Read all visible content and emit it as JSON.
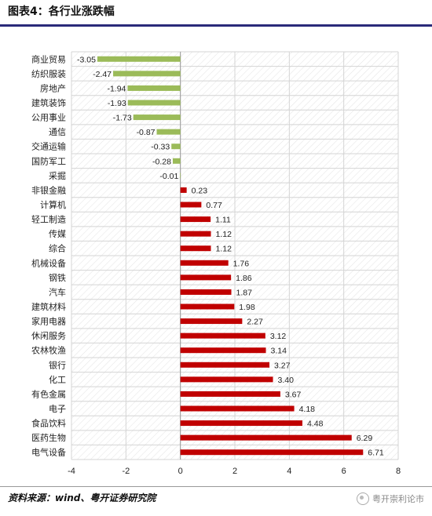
{
  "title": "图表4：各行业涨跌幅",
  "source": "资料来源：wind、粤开证券研究院",
  "watermark": "粤开崇利论市",
  "colors": {
    "negative": "#9bbb59",
    "positive": "#c00000",
    "grid": "#d4d4d4"
  },
  "chart_data": {
    "type": "bar",
    "orientation": "horizontal",
    "categories": [
      "商业贸易",
      "纺织服装",
      "房地产",
      "建筑装饰",
      "公用事业",
      "通信",
      "交通运输",
      "国防军工",
      "采掘",
      "非银金融",
      "计算机",
      "轻工制造",
      "传媒",
      "综合",
      "机械设备",
      "钢铁",
      "汽车",
      "建筑材料",
      "家用电器",
      "休闲服务",
      "农林牧渔",
      "银行",
      "化工",
      "有色金属",
      "电子",
      "食品饮料",
      "医药生物",
      "电气设备"
    ],
    "values": [
      -3.05,
      -2.47,
      -1.94,
      -1.93,
      -1.73,
      -0.87,
      -0.33,
      -0.28,
      -0.01,
      0.23,
      0.77,
      1.11,
      1.12,
      1.12,
      1.76,
      1.86,
      1.87,
      1.98,
      2.27,
      3.12,
      3.14,
      3.27,
      3.4,
      3.67,
      4.18,
      4.48,
      6.29,
      6.71
    ],
    "value_labels": [
      "-3.05",
      "-2.47",
      "-1.94",
      "-1.93",
      "-1.73",
      "-0.87",
      "-0.33",
      "-0.28",
      "-0.01",
      "0.23",
      "0.77",
      "1.11",
      "1.12",
      "1.12",
      "1.76",
      "1.86",
      "1.87",
      "1.98",
      "2.27",
      "3.12",
      "3.14",
      "3.27",
      "3.40",
      "3.67",
      "4.18",
      "4.48",
      "6.29",
      "6.71"
    ],
    "xlim": [
      -4,
      8
    ],
    "xticks": [
      -4,
      -2,
      0,
      2,
      4,
      6,
      8
    ],
    "grid": true
  }
}
